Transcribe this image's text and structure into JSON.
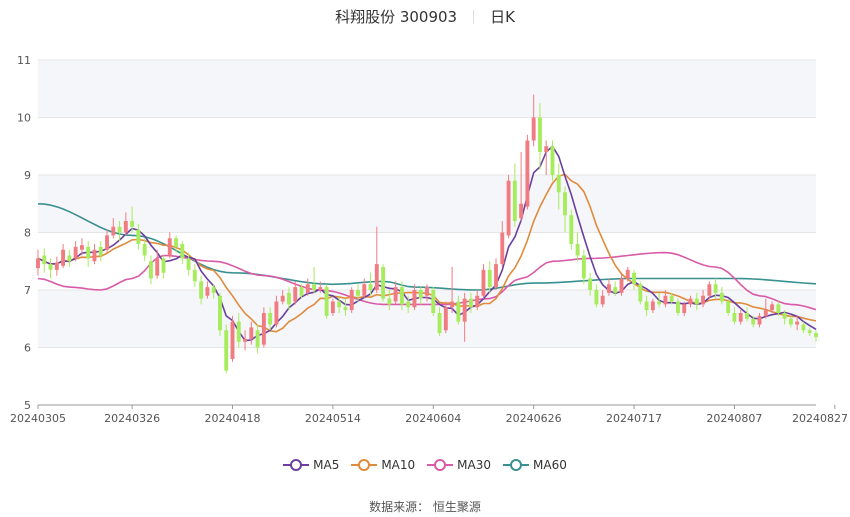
{
  "header": {
    "title": "科翔股份 300903",
    "period": "日K"
  },
  "source": "数据来源： 恒生聚源",
  "colors": {
    "up": "#f07c82",
    "down": "#a6ec5c",
    "ma5": "#6a3fa0",
    "ma10": "#e08a3c",
    "ma30": "#d85aa8",
    "ma60": "#3a9090",
    "grid": "#e6e6e6"
  },
  "chart_data": {
    "type": "candlestick",
    "title": "科翔股份 300903",
    "ylim": [
      5,
      11
    ],
    "yticks": [
      5,
      6,
      7,
      8,
      9,
      10,
      11
    ],
    "xticks": [
      "20240305",
      "20240326",
      "20240418",
      "20240514",
      "20240604",
      "20240626",
      "20240717",
      "20240807",
      "20240827"
    ],
    "xtick_index": [
      0,
      15,
      31,
      47,
      63,
      79,
      95,
      111,
      127
    ],
    "legend": [
      "MA5",
      "MA10",
      "MA30",
      "MA60"
    ],
    "legend_position": "bottom",
    "candles": [
      [
        7.38,
        7.55,
        7.25,
        7.7
      ],
      [
        7.6,
        7.45,
        7.3,
        7.72
      ],
      [
        7.45,
        7.35,
        7.2,
        7.55
      ],
      [
        7.35,
        7.48,
        7.25,
        7.58
      ],
      [
        7.42,
        7.7,
        7.38,
        7.8
      ],
      [
        7.6,
        7.5,
        7.4,
        7.7
      ],
      [
        7.55,
        7.75,
        7.5,
        7.85
      ],
      [
        7.7,
        7.78,
        7.6,
        7.9
      ],
      [
        7.75,
        7.55,
        7.4,
        7.85
      ],
      [
        7.5,
        7.7,
        7.45,
        7.8
      ],
      [
        7.75,
        7.6,
        7.5,
        7.85
      ],
      [
        7.7,
        7.95,
        7.65,
        8.05
      ],
      [
        7.95,
        8.1,
        7.9,
        8.25
      ],
      [
        8.1,
        8.0,
        7.85,
        8.2
      ],
      [
        8.0,
        8.2,
        7.95,
        8.35
      ],
      [
        8.2,
        8.1,
        8.0,
        8.45
      ],
      [
        8.05,
        7.8,
        7.7,
        8.15
      ],
      [
        7.8,
        7.6,
        7.5,
        7.9
      ],
      [
        7.5,
        7.2,
        7.1,
        7.6
      ],
      [
        7.25,
        7.55,
        7.2,
        7.7
      ],
      [
        7.55,
        7.3,
        7.2,
        7.6
      ],
      [
        7.6,
        7.9,
        7.55,
        8.0
      ],
      [
        7.9,
        7.75,
        7.65,
        7.95
      ],
      [
        7.8,
        7.55,
        7.45,
        7.85
      ],
      [
        7.55,
        7.35,
        7.25,
        7.65
      ],
      [
        7.35,
        7.15,
        7.05,
        7.45
      ],
      [
        7.15,
        6.85,
        6.75,
        7.25
      ],
      [
        6.9,
        7.05,
        6.85,
        7.15
      ],
      [
        7.05,
        6.95,
        6.85,
        7.1
      ],
      [
        6.9,
        6.3,
        6.2,
        6.95
      ],
      [
        6.3,
        5.6,
        5.55,
        6.4
      ],
      [
        5.8,
        6.45,
        5.75,
        6.55
      ],
      [
        6.45,
        6.1,
        6.0,
        6.6
      ],
      [
        6.1,
        6.15,
        5.95,
        6.3
      ],
      [
        6.15,
        6.35,
        6.05,
        6.45
      ],
      [
        6.3,
        6.0,
        5.9,
        6.4
      ],
      [
        6.05,
        6.6,
        6.0,
        6.7
      ],
      [
        6.6,
        6.4,
        6.3,
        6.7
      ],
      [
        6.4,
        6.8,
        6.35,
        6.9
      ],
      [
        6.8,
        6.9,
        6.75,
        7.0
      ],
      [
        6.95,
        6.75,
        6.65,
        7.05
      ],
      [
        6.8,
        7.05,
        6.75,
        7.15
      ],
      [
        7.05,
        6.9,
        6.85,
        7.1
      ],
      [
        6.95,
        7.1,
        6.9,
        7.2
      ],
      [
        7.1,
        7.0,
        6.95,
        7.4
      ],
      [
        7.0,
        7.05,
        6.95,
        7.15
      ],
      [
        7.05,
        6.55,
        6.5,
        7.1
      ],
      [
        6.6,
        6.8,
        6.55,
        6.85
      ],
      [
        6.8,
        6.7,
        6.6,
        6.9
      ],
      [
        6.7,
        6.65,
        6.55,
        6.85
      ],
      [
        6.65,
        7.0,
        6.6,
        7.05
      ],
      [
        7.0,
        6.9,
        6.8,
        7.1
      ],
      [
        6.9,
        7.1,
        6.85,
        7.2
      ],
      [
        7.1,
        7.0,
        6.9,
        7.3
      ],
      [
        7.0,
        7.45,
        6.95,
        8.1
      ],
      [
        7.4,
        6.85,
        6.8,
        7.45
      ],
      [
        6.85,
        6.75,
        6.65,
        7.0
      ],
      [
        6.8,
        7.05,
        6.75,
        7.15
      ],
      [
        7.05,
        6.75,
        6.65,
        7.15
      ],
      [
        6.8,
        6.7,
        6.6,
        6.9
      ],
      [
        6.7,
        7.0,
        6.65,
        7.1
      ],
      [
        7.0,
        6.85,
        6.75,
        7.05
      ],
      [
        6.9,
        7.05,
        6.8,
        7.1
      ],
      [
        7.0,
        6.6,
        6.55,
        7.05
      ],
      [
        6.6,
        6.25,
        6.2,
        6.7
      ],
      [
        6.3,
        6.7,
        6.25,
        6.8
      ],
      [
        6.7,
        6.8,
        6.6,
        7.4
      ],
      [
        6.8,
        6.45,
        6.4,
        6.9
      ],
      [
        6.45,
        6.85,
        6.1,
        6.95
      ],
      [
        6.85,
        6.7,
        6.6,
        6.95
      ],
      [
        6.7,
        6.9,
        6.65,
        7.0
      ],
      [
        6.9,
        7.35,
        6.85,
        7.45
      ],
      [
        7.35,
        7.05,
        6.95,
        7.5
      ],
      [
        7.05,
        7.45,
        7.0,
        7.55
      ],
      [
        7.45,
        8.0,
        7.4,
        8.2
      ],
      [
        7.95,
        8.9,
        7.9,
        9.0
      ],
      [
        8.9,
        8.2,
        8.1,
        9.2
      ],
      [
        8.25,
        8.5,
        8.2,
        9.4
      ],
      [
        8.45,
        9.6,
        8.4,
        9.7
      ],
      [
        9.6,
        10.0,
        9.5,
        10.4
      ],
      [
        10.0,
        9.4,
        9.1,
        10.25
      ],
      [
        9.4,
        9.5,
        9.0,
        9.6
      ],
      [
        9.5,
        9.0,
        8.9,
        9.6
      ],
      [
        9.0,
        8.7,
        8.4,
        9.2
      ],
      [
        8.7,
        8.3,
        8.0,
        8.8
      ],
      [
        8.3,
        7.8,
        7.7,
        8.4
      ],
      [
        7.8,
        7.6,
        7.5,
        8.0
      ],
      [
        7.6,
        7.2,
        7.1,
        7.7
      ],
      [
        7.2,
        7.0,
        6.9,
        7.3
      ],
      [
        7.0,
        6.75,
        6.7,
        7.1
      ],
      [
        6.75,
        6.9,
        6.7,
        7.0
      ],
      [
        6.95,
        7.1,
        6.9,
        7.2
      ],
      [
        7.05,
        6.95,
        6.9,
        7.15
      ],
      [
        6.95,
        7.2,
        6.9,
        7.3
      ],
      [
        7.2,
        7.35,
        7.15,
        7.4
      ],
      [
        7.3,
        7.1,
        7.0,
        7.35
      ],
      [
        7.1,
        6.8,
        6.75,
        7.15
      ],
      [
        6.8,
        6.65,
        6.55,
        6.9
      ],
      [
        6.65,
        6.8,
        6.6,
        6.85
      ],
      [
        6.8,
        6.75,
        6.7,
        6.95
      ],
      [
        6.75,
        6.9,
        6.7,
        7.0
      ],
      [
        6.9,
        6.8,
        6.75,
        6.95
      ],
      [
        6.8,
        6.6,
        6.55,
        6.85
      ],
      [
        6.6,
        6.75,
        6.55,
        6.8
      ],
      [
        6.75,
        6.85,
        6.7,
        6.9
      ],
      [
        6.85,
        6.75,
        6.65,
        6.95
      ],
      [
        6.75,
        6.9,
        6.7,
        7.0
      ],
      [
        6.9,
        7.1,
        6.85,
        7.15
      ],
      [
        7.1,
        6.95,
        6.85,
        7.2
      ],
      [
        6.95,
        6.8,
        6.75,
        7.05
      ],
      [
        6.8,
        6.6,
        6.55,
        6.85
      ],
      [
        6.6,
        6.45,
        6.4,
        6.7
      ],
      [
        6.45,
        6.6,
        6.4,
        6.65
      ],
      [
        6.6,
        6.5,
        6.45,
        6.7
      ],
      [
        6.5,
        6.4,
        6.35,
        6.55
      ],
      [
        6.4,
        6.55,
        6.35,
        6.6
      ],
      [
        6.55,
        6.65,
        6.5,
        6.85
      ],
      [
        6.65,
        6.75,
        6.6,
        6.8
      ],
      [
        6.75,
        6.6,
        6.55,
        6.8
      ],
      [
        6.6,
        6.5,
        6.4,
        6.65
      ],
      [
        6.5,
        6.4,
        6.35,
        6.55
      ],
      [
        6.4,
        6.45,
        6.3,
        6.55
      ],
      [
        6.4,
        6.3,
        6.25,
        6.45
      ],
      [
        6.3,
        6.25,
        6.2,
        6.35
      ],
      [
        6.25,
        6.18,
        6.1,
        6.3
      ]
    ],
    "ma60_anchors": [
      [
        0,
        8.5
      ],
      [
        15,
        7.95
      ],
      [
        31,
        7.3
      ],
      [
        47,
        7.1
      ],
      [
        55,
        7.15
      ],
      [
        60,
        7.05
      ],
      [
        70,
        7.0
      ],
      [
        79,
        7.12
      ],
      [
        95,
        7.2
      ],
      [
        111,
        7.2
      ],
      [
        127,
        7.1
      ]
    ],
    "ma30_anchors": [
      [
        0,
        7.2
      ],
      [
        5,
        7.05
      ],
      [
        10,
        7.0
      ],
      [
        15,
        7.2
      ],
      [
        20,
        7.6
      ],
      [
        28,
        7.5
      ],
      [
        36,
        7.25
      ],
      [
        45,
        7.0
      ],
      [
        55,
        6.75
      ],
      [
        65,
        6.75
      ],
      [
        72,
        6.85
      ],
      [
        77,
        7.2
      ],
      [
        82,
        7.5
      ],
      [
        88,
        7.55
      ],
      [
        100,
        7.65
      ],
      [
        108,
        7.4
      ],
      [
        115,
        6.9
      ],
      [
        120,
        6.75
      ],
      [
        127,
        6.6
      ]
    ]
  }
}
